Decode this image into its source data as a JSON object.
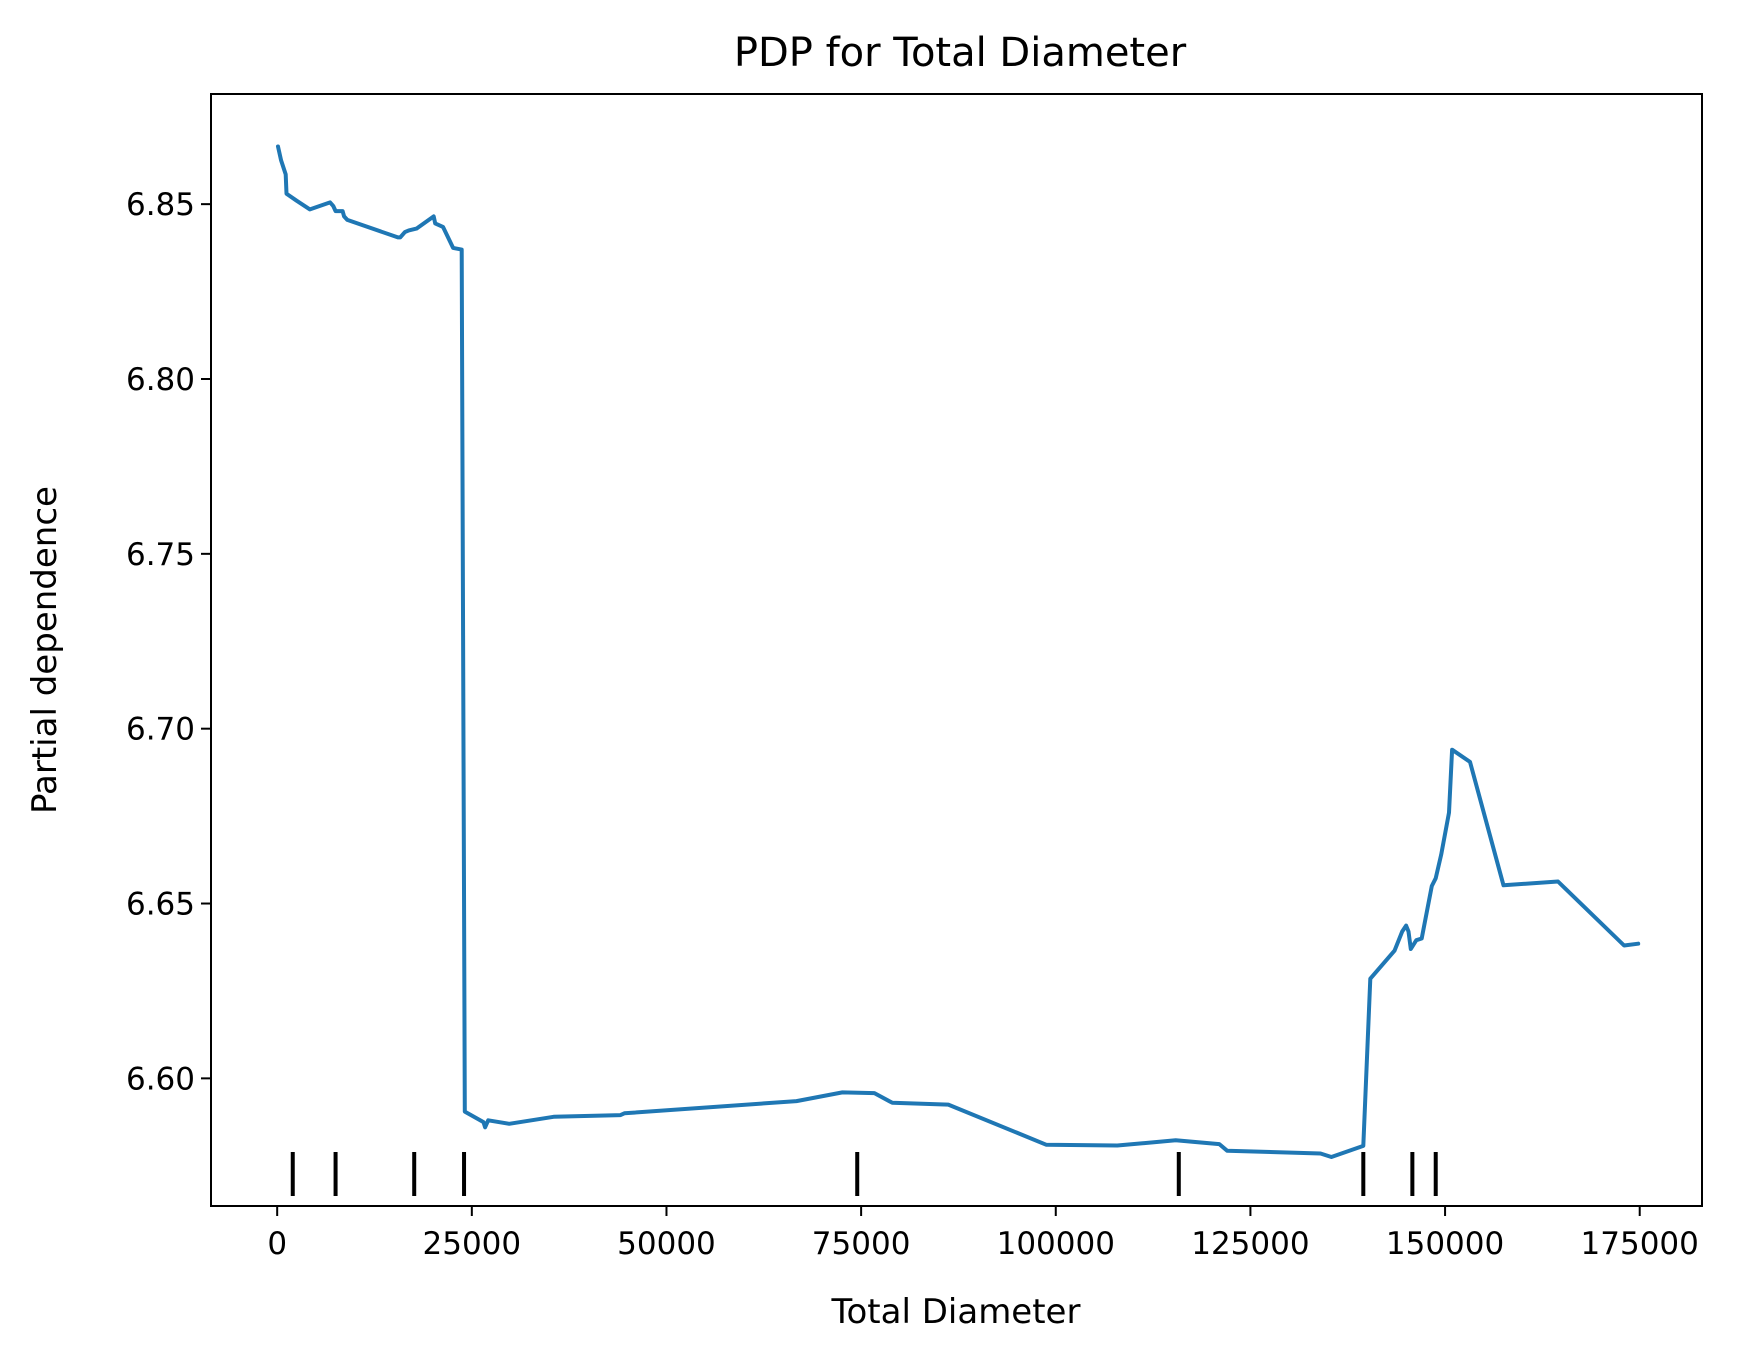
{
  "chart_data": {
    "type": "line",
    "title": "PDP for Total Diameter",
    "xlabel": "Total Diameter",
    "ylabel": "Partial dependence",
    "xlim": [
      -8500,
      183000
    ],
    "ylim": [
      6.5635,
      6.8815
    ],
    "xticks": [
      0,
      25000,
      50000,
      75000,
      100000,
      125000,
      150000,
      175000
    ],
    "xtick_labels": [
      "0",
      "25000",
      "50000",
      "75000",
      "100000",
      "125000",
      "150000",
      "175000"
    ],
    "yticks": [
      6.6,
      6.65,
      6.7,
      6.75,
      6.8,
      6.85
    ],
    "ytick_labels": [
      "6.60",
      "6.65",
      "6.70",
      "6.75",
      "6.80",
      "6.85"
    ],
    "grid": false,
    "line_color": "#1f77b4",
    "series": [
      {
        "x": [
          100,
          500,
          1100,
          1200,
          1500,
          2500,
          4200,
          6800,
          7200,
          7500,
          8400,
          8600,
          9000,
          15500,
          15800,
          16400,
          16900,
          17900,
          20100,
          20300,
          21300,
          22600,
          23700,
          24100,
          26500,
          26700,
          27100,
          29800,
          35500,
          44100,
          44600,
          66700,
          72600,
          76700,
          79000,
          86200,
          98800,
          107900,
          115400,
          121000,
          122000,
          134000,
          135400,
          139500,
          140400,
          143500,
          144500,
          145000,
          145300,
          145600,
          146300,
          147000,
          148300,
          148800,
          149500,
          150500,
          150900,
          153200,
          157500,
          164500,
          173000,
          174800
        ],
        "y": [
          6.8665,
          6.8625,
          6.8585,
          6.853,
          6.8525,
          6.851,
          6.8485,
          6.8505,
          6.8495,
          6.848,
          6.848,
          6.8465,
          6.8455,
          6.8405,
          6.8405,
          6.842,
          6.8425,
          6.843,
          6.8465,
          6.8445,
          6.8435,
          6.8375,
          6.837,
          6.5905,
          6.5875,
          6.586,
          6.588,
          6.587,
          6.589,
          6.5895,
          6.59,
          6.5935,
          6.596,
          6.5958,
          6.593,
          6.5925,
          6.581,
          6.5808,
          6.5823,
          6.5812,
          6.5793,
          6.5785,
          6.5775,
          6.5807,
          6.6285,
          6.6365,
          6.642,
          6.6437,
          6.642,
          6.637,
          6.6395,
          6.64,
          6.655,
          6.6572,
          6.664,
          6.676,
          6.694,
          6.6905,
          6.6552,
          6.6563,
          6.638,
          6.6385
        ]
      }
    ],
    "rug_x": [
      2000,
      7500,
      17600,
      24000,
      74500,
      115800,
      139500,
      145800,
      148800
    ]
  }
}
